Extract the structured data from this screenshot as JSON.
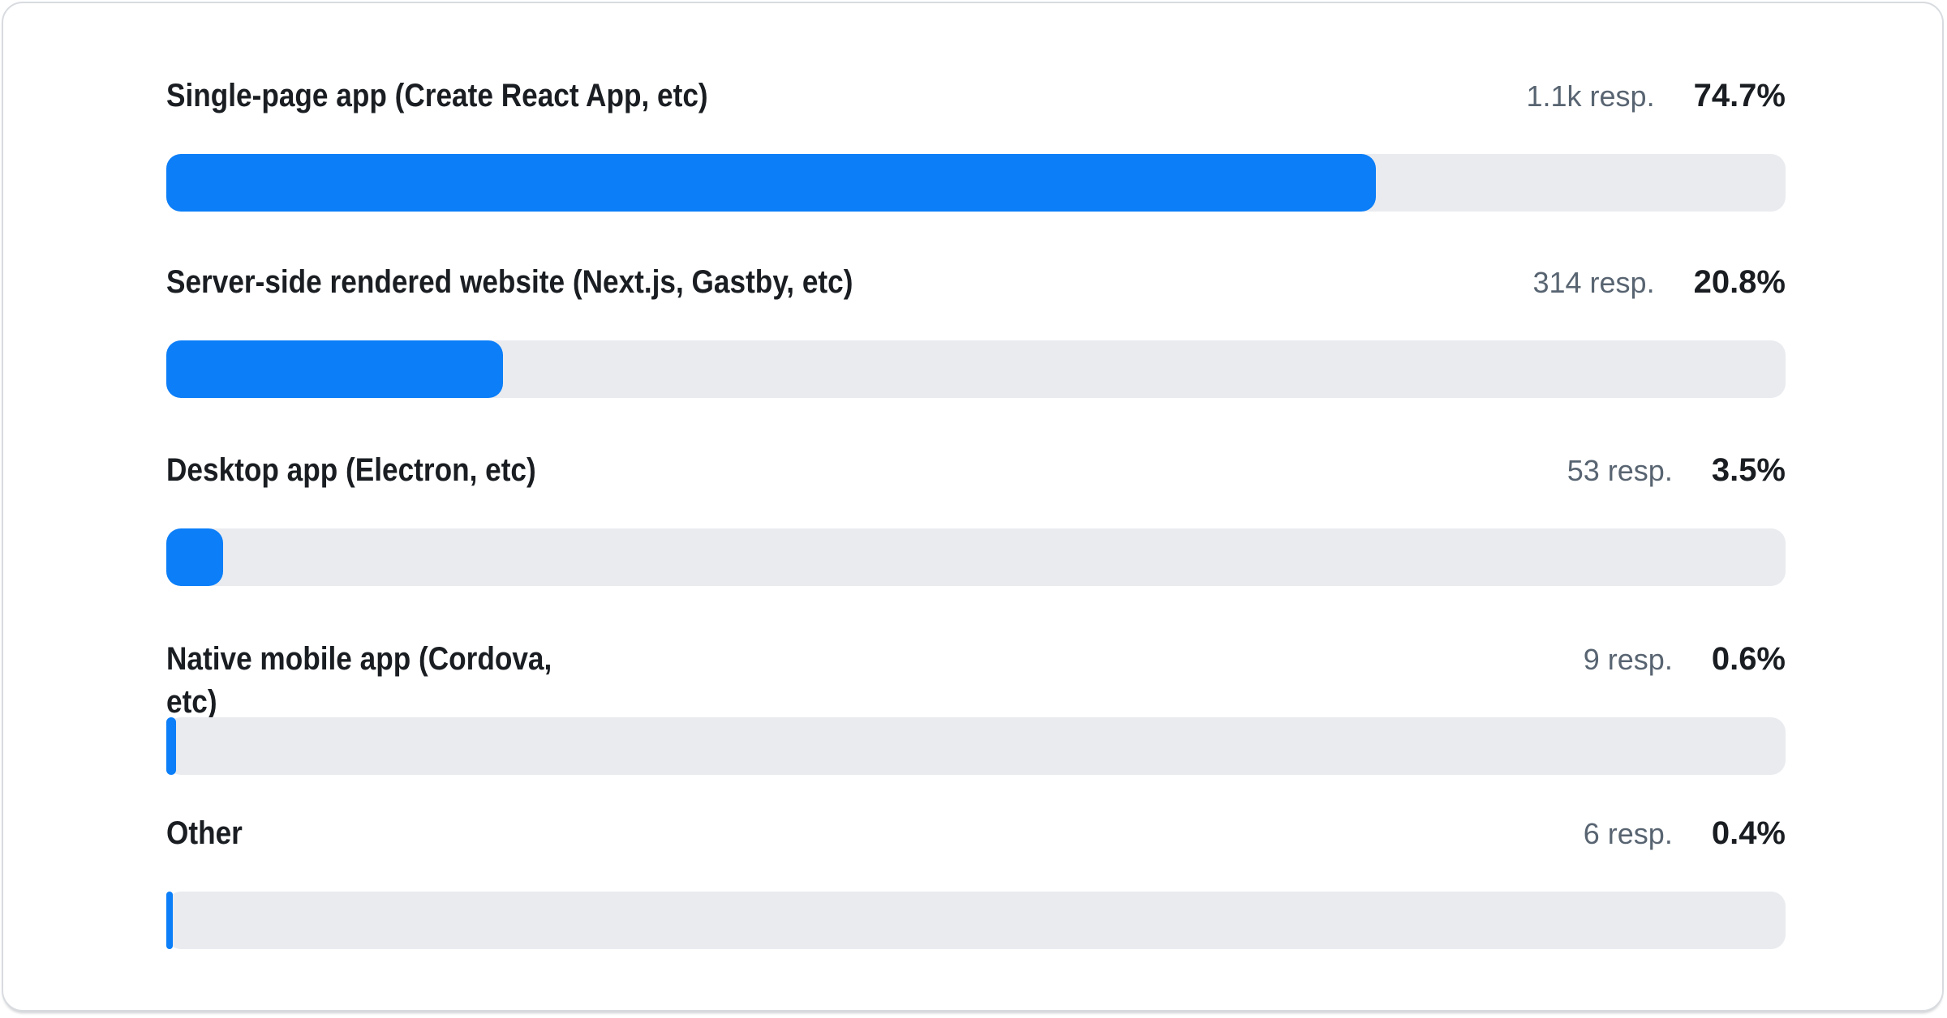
{
  "chart_data": {
    "type": "bar",
    "orientation": "horizontal",
    "value_unit": "%",
    "xlim": [
      0,
      100
    ],
    "categories": [
      "Single-page app (Create React App, etc)",
      "Server-side rendered website (Next.js, Gastby, etc)",
      "Desktop app (Electron, etc)",
      "Native mobile app (Cordova, etc)",
      "Other"
    ],
    "values": [
      74.7,
      20.8,
      3.5,
      0.6,
      0.4
    ],
    "rows": [
      {
        "label": "Single-page app (Create React App, etc)",
        "responses": "1.1k resp.",
        "percent": "74.7%",
        "value": 74.7
      },
      {
        "label": "Server-side rendered website (Next.js, Gastby, etc)",
        "responses": "314 resp.",
        "percent": "20.8%",
        "value": 20.8
      },
      {
        "label": "Desktop app (Electron, etc)",
        "responses": "53 resp.",
        "percent": "3.5%",
        "value": 3.5
      },
      {
        "label": "Native mobile app (Cordova,\netc)",
        "responses": "9 resp.",
        "percent": "0.6%",
        "value": 0.6
      },
      {
        "label": "Other",
        "responses": "6 resp.",
        "percent": "0.4%",
        "value": 0.4
      }
    ]
  },
  "colors": {
    "bar_fill": "#0b7ef8",
    "bar_track": "#e9ebef",
    "label_text": "#1a1e22",
    "responses_text": "#586471",
    "percent_text": "#1a1e22",
    "card_background": "#ffffff",
    "card_border": "#d8dbdf"
  }
}
